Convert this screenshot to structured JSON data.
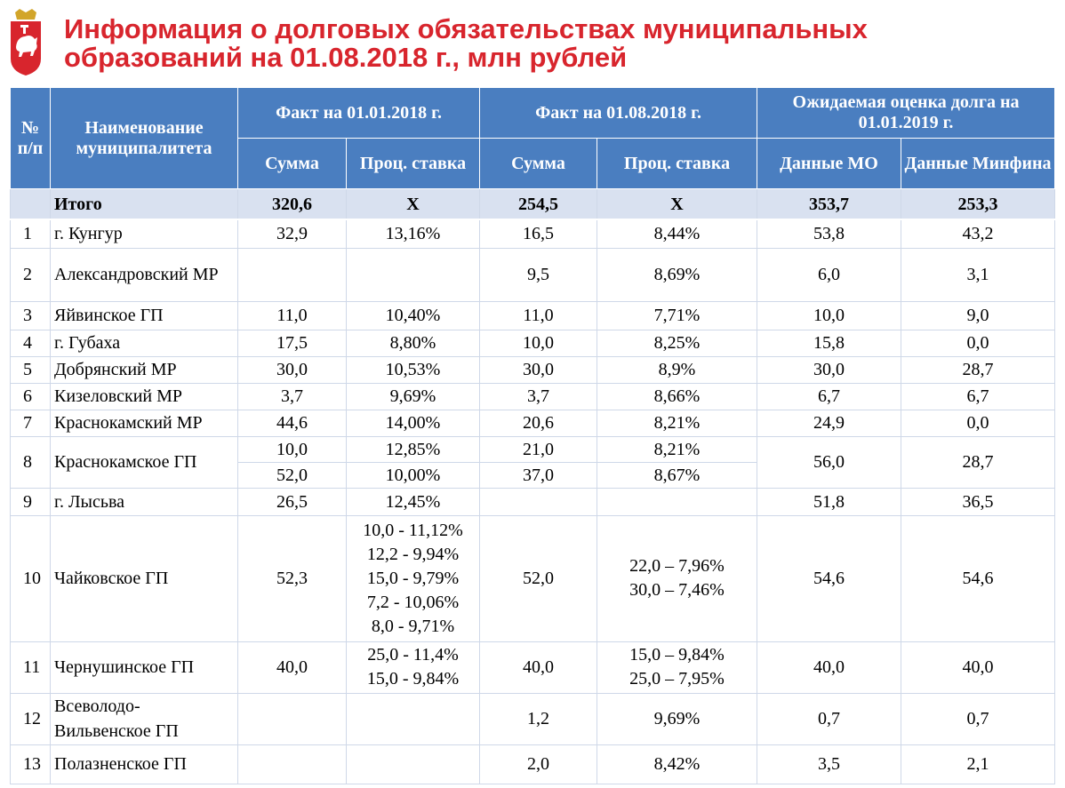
{
  "title_line1": "Информация о долговых обязательствах муниципальных",
  "title_line2": "образований на 01.08.2018 г., млн рублей",
  "logo_icon": "perm-krai-coat-of-arms-icon",
  "colors": {
    "title": "#d8252d",
    "header_bg": "#4a7ec0",
    "total_bg": "#d9e1f0"
  },
  "headers": {
    "num": "№ п/п",
    "name": "Наименование муниципалитета",
    "fact_2018_01": "Факт на 01.01.2018 г.",
    "fact_2018_08": "Факт на 01.08.2018 г.",
    "expected_2019": "Ожидаемая оценка долга на 01.01.2019 г.",
    "sum": "Сумма",
    "rate": "Проц. ставка",
    "mo_data": "Данные МО",
    "minfin_data": "Данные Минфина"
  },
  "total": {
    "label": "Итого",
    "sum1": "320,6",
    "rate1": "Х",
    "sum2": "254,5",
    "rate2": "Х",
    "mo": "353,7",
    "minfin": "253,3"
  },
  "rows": [
    {
      "n": "1",
      "name": "г. Кунгур",
      "sum1": "32,9",
      "rate1": "13,16%",
      "sum2": "16,5",
      "rate2": "8,44%",
      "mo": "53,8",
      "minfin": "43,2"
    },
    {
      "n": "2",
      "name": "Александровский МР",
      "sum1": "",
      "rate1": "",
      "sum2": "9,5",
      "rate2": "8,69%",
      "mo": "6,0",
      "minfin": "3,1"
    },
    {
      "n": "3",
      "name": "Яйвинское ГП",
      "sum1": "11,0",
      "rate1": "10,40%",
      "sum2": "11,0",
      "rate2": "7,71%",
      "mo": "10,0",
      "minfin": "9,0"
    },
    {
      "n": "4",
      "name": "г. Губаха",
      "sum1": "17,5",
      "rate1": "8,80%",
      "sum2": "10,0",
      "rate2": "8,25%",
      "mo": "15,8",
      "minfin": "0,0"
    },
    {
      "n": "5",
      "name": "Добрянский МР",
      "sum1": "30,0",
      "rate1": "10,53%",
      "sum2": "30,0",
      "rate2": "8,9%",
      "mo": "30,0",
      "minfin": "28,7"
    },
    {
      "n": "6",
      "name": "Кизеловский МР",
      "sum1": "3,7",
      "rate1": "9,69%",
      "sum2": "3,7",
      "rate2": "8,66%",
      "mo": "6,7",
      "minfin": "6,7"
    },
    {
      "n": "7",
      "name": "Краснокамский МР",
      "sum1": "44,6",
      "rate1": "14,00%",
      "sum2": "20,6",
      "rate2": "8,21%",
      "mo": "24,9",
      "minfin": "0,0"
    },
    {
      "n": "8",
      "name": "Краснокамское ГП",
      "sum1a": "10,0",
      "rate1a": "12,85%",
      "sum2a": "21,0",
      "rate2a": "8,21%",
      "sum1b": "52,0",
      "rate1b": "10,00%",
      "sum2b": "37,0",
      "rate2b": "8,67%",
      "mo": "56,0",
      "minfin": "28,7"
    },
    {
      "n": "9",
      "name": "г. Лысьва",
      "sum1": "26,5",
      "rate1": "12,45%",
      "sum2": "",
      "rate2": "",
      "mo": "51,8",
      "minfin": "36,5"
    },
    {
      "n": "10",
      "name": "Чайковское ГП",
      "sum1": "52,3",
      "rate1_lines": [
        "10,0 - 11,12%",
        "12,2 - 9,94%",
        "15,0 - 9,79%",
        "7,2 - 10,06%",
        "8,0 - 9,71%"
      ],
      "sum2": "52,0",
      "rate2_lines": [
        "22,0 – 7,96%",
        "30,0 – 7,46%"
      ],
      "mo": "54,6",
      "minfin": "54,6"
    },
    {
      "n": "11",
      "name": "Чернушинское ГП",
      "sum1": "40,0",
      "rate1_lines": [
        "25,0 - 11,4%",
        "15,0 - 9,84%"
      ],
      "sum2": "40,0",
      "rate2_lines": [
        "15,0 – 9,84%",
        "25,0 – 7,95%"
      ],
      "mo": "40,0",
      "minfin": "40,0"
    },
    {
      "n": "12",
      "name": "Всеволодо-Вильвенское ГП",
      "sum1": "",
      "rate1": "",
      "sum2": "1,2",
      "rate2": "9,69%",
      "mo": "0,7",
      "minfin": "0,7"
    },
    {
      "n": "13",
      "name": "Полазненское ГП",
      "sum1": "",
      "rate1": "",
      "sum2": "2,0",
      "rate2": "8,42%",
      "mo": "3,5",
      "minfin": "2,1"
    }
  ]
}
